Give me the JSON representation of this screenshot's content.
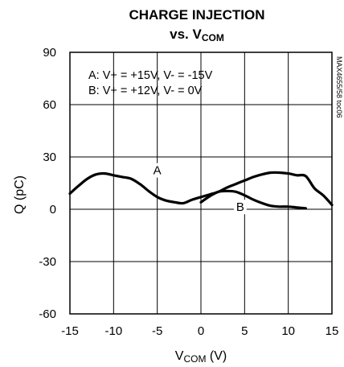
{
  "chart_data": {
    "type": "line",
    "title_line1": "CHARGE INJECTION",
    "title_line2_main": "vs. V",
    "title_line2_sub": "COM",
    "xlabel_main": "V",
    "xlabel_sub": "COM",
    "xlabel_unit": " (V)",
    "ylabel": "Q (pC)",
    "xlim": [
      -15,
      15
    ],
    "ylim": [
      -60,
      90
    ],
    "x_ticks": [
      -15,
      -10,
      -5,
      0,
      5,
      10,
      15
    ],
    "y_ticks": [
      -60,
      -30,
      0,
      30,
      60,
      90
    ],
    "grid": true,
    "legend": [
      "A: V+ = +15V, V- = -15V",
      "B: V+ = +12V, V- = 0V"
    ],
    "side_label": "MAX4655/58 toc06",
    "series": [
      {
        "name": "A",
        "x": [
          -15,
          -14,
          -13,
          -12,
          -11,
          -10,
          -9,
          -8,
          -7,
          -6,
          -5,
          -4,
          -3,
          -2,
          -1,
          0,
          1,
          2,
          3,
          4,
          5,
          6,
          7,
          8,
          9,
          10,
          11,
          12,
          13,
          14,
          15
        ],
        "y": [
          9,
          13.5,
          17.5,
          20,
          20.5,
          19.5,
          18.5,
          17.5,
          14.5,
          10.5,
          7,
          5,
          4,
          3.5,
          5.5,
          7,
          8.5,
          10,
          12.5,
          14.5,
          16.5,
          18.5,
          20,
          21,
          21,
          20.5,
          19.5,
          19,
          12,
          8,
          2.5
        ]
      },
      {
        "name": "B",
        "x": [
          0,
          1,
          2,
          3,
          4,
          5,
          6,
          7,
          8,
          9,
          10,
          11,
          12
        ],
        "y": [
          4,
          7.5,
          10,
          10.5,
          10,
          8,
          5.5,
          3.5,
          2,
          1.5,
          1.5,
          1,
          0.5
        ]
      }
    ],
    "curve_labels": [
      {
        "text": "A",
        "x": -5,
        "y": 20
      },
      {
        "text": "B",
        "x": 4.5,
        "y": -1
      }
    ]
  }
}
